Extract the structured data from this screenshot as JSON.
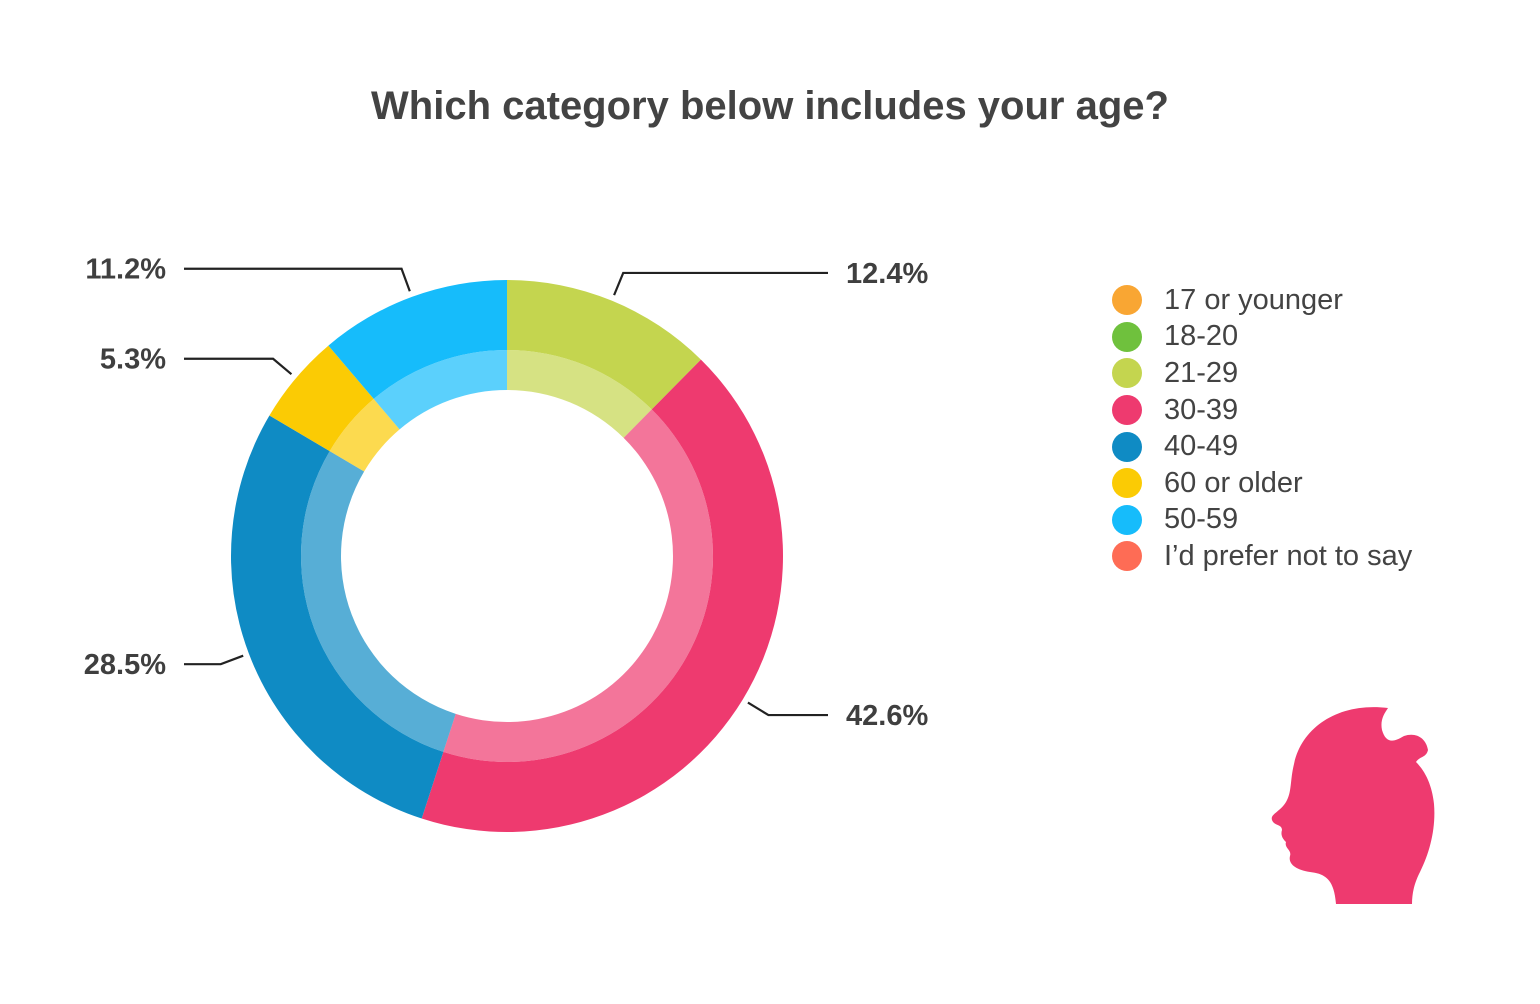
{
  "chart_data": {
    "type": "donut",
    "title": "Which category below includes your age?",
    "slices": [
      {
        "label": "17 or younger",
        "value": 0,
        "color": "#f9a633"
      },
      {
        "label": "18-20",
        "value": 0,
        "color": "#6fc13d"
      },
      {
        "label": "21-29",
        "value": 12.4,
        "display": "12.4%",
        "color": "#c4d54f"
      },
      {
        "label": "30-39",
        "value": 42.6,
        "display": "42.6%",
        "color": "#ee3a6f"
      },
      {
        "label": "40-49",
        "value": 28.5,
        "display": "28.5%",
        "color": "#0f8bc4"
      },
      {
        "label": "60 or older",
        "value": 5.3,
        "display": "5.3%",
        "color": "#fbcb04"
      },
      {
        "label": "50-59",
        "value": 11.2,
        "display": "11.2%",
        "color": "#16bcfb"
      },
      {
        "label": "I’d prefer not to say",
        "value": 0,
        "color": "#fe6c55"
      }
    ],
    "legend_position": "right"
  },
  "decor": {
    "head_icon": "head-profile-icon",
    "head_color": "#ee3a6f"
  }
}
